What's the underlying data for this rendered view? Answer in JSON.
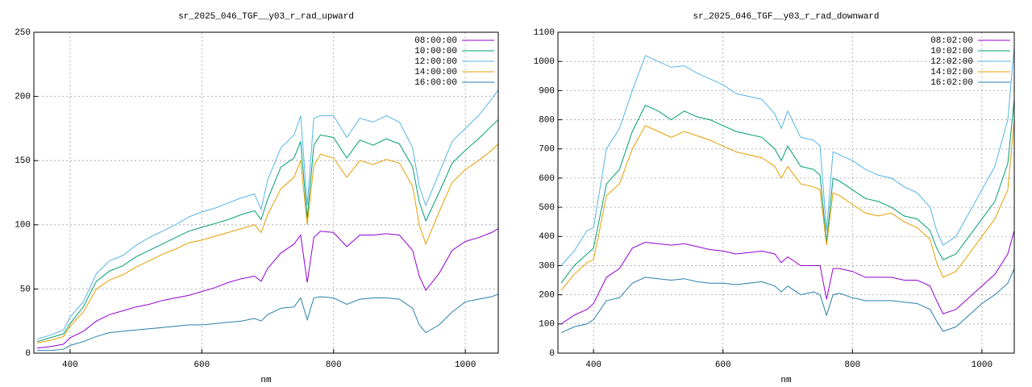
{
  "chart_data": [
    {
      "type": "line",
      "title": "sr_2025_046_TGF__y03_r_rad_upward",
      "xlabel": "nm",
      "x": [
        350,
        370,
        390,
        400,
        420,
        440,
        460,
        480,
        500,
        520,
        540,
        560,
        580,
        600,
        620,
        640,
        660,
        680,
        690,
        700,
        720,
        740,
        750,
        760,
        770,
        780,
        800,
        820,
        840,
        860,
        880,
        900,
        920,
        930,
        940,
        960,
        980,
        1000,
        1020,
        1040,
        1050
      ],
      "xlim": [
        345,
        1050
      ],
      "xticks": [
        400,
        600,
        800,
        1000
      ],
      "ylim": [
        0,
        250
      ],
      "yticks": [
        0,
        50,
        100,
        150,
        200,
        250
      ],
      "grid": true,
      "legend": "top right",
      "series": [
        {
          "name": "08:00:00",
          "color": "#9400d3",
          "values": [
            4,
            5,
            7,
            12,
            17,
            25,
            30,
            33,
            36,
            38,
            41,
            43,
            45,
            48,
            51,
            55,
            58,
            60,
            56,
            66,
            78,
            85,
            92,
            55,
            90,
            95,
            94,
            83,
            92,
            92,
            93,
            92,
            80,
            60,
            49,
            62,
            80,
            87,
            90,
            94,
            97
          ]
        },
        {
          "name": "10:00:00",
          "color": "#009e73",
          "values": [
            9,
            12,
            15,
            23,
            36,
            56,
            64,
            68,
            75,
            80,
            85,
            90,
            95,
            98,
            101,
            104,
            108,
            111,
            104,
            120,
            145,
            152,
            165,
            105,
            162,
            170,
            168,
            152,
            166,
            162,
            167,
            163,
            145,
            118,
            103,
            125,
            148,
            158,
            167,
            177,
            182
          ]
        },
        {
          "name": "12:00:00",
          "color": "#56b4e9",
          "values": [
            11,
            14,
            18,
            28,
            40,
            62,
            72,
            76,
            84,
            90,
            95,
            100,
            106,
            110,
            113,
            117,
            121,
            124,
            112,
            135,
            160,
            170,
            185,
            115,
            183,
            185,
            185,
            168,
            183,
            180,
            185,
            180,
            160,
            130,
            115,
            140,
            165,
            175,
            185,
            198,
            205
          ]
        },
        {
          "name": "14:00:00",
          "color": "#e69f00",
          "values": [
            8,
            10,
            13,
            21,
            32,
            50,
            57,
            61,
            67,
            72,
            77,
            81,
            86,
            88,
            91,
            94,
            97,
            100,
            94,
            108,
            128,
            137,
            150,
            100,
            146,
            155,
            152,
            137,
            150,
            147,
            151,
            148,
            130,
            100,
            85,
            110,
            133,
            143,
            150,
            158,
            163
          ]
        },
        {
          "name": "16:00:00",
          "color": "#2b7fa8",
          "values": [
            2,
            2,
            3,
            6,
            9,
            13,
            16,
            17,
            18,
            19,
            20,
            21,
            22,
            22,
            23,
            24,
            25,
            27,
            25,
            30,
            35,
            36,
            43,
            26,
            43,
            44,
            43,
            38,
            42,
            43,
            43,
            42,
            35,
            22,
            16,
            22,
            32,
            40,
            42,
            44,
            46
          ]
        }
      ]
    },
    {
      "type": "line",
      "title": "sr_2025_046_TGF__y03_r_rad_downward",
      "xlabel": "nm",
      "x": [
        350,
        370,
        390,
        400,
        420,
        440,
        460,
        480,
        500,
        520,
        540,
        560,
        580,
        600,
        620,
        640,
        660,
        680,
        690,
        700,
        720,
        740,
        750,
        760,
        770,
        780,
        800,
        820,
        840,
        860,
        880,
        900,
        920,
        930,
        940,
        960,
        980,
        1000,
        1020,
        1040,
        1050
      ],
      "xlim": [
        345,
        1050
      ],
      "xticks": [
        400,
        600,
        800,
        1000
      ],
      "ylim": [
        0,
        1100
      ],
      "yticks": [
        0,
        100,
        200,
        300,
        400,
        500,
        600,
        700,
        800,
        900,
        1000,
        1100
      ],
      "grid": true,
      "legend": "top right",
      "series": [
        {
          "name": "08:02:00",
          "color": "#9400d3",
          "values": [
            100,
            130,
            150,
            170,
            260,
            290,
            360,
            380,
            375,
            370,
            375,
            365,
            355,
            350,
            340,
            345,
            350,
            340,
            310,
            330,
            300,
            300,
            300,
            185,
            290,
            290,
            280,
            260,
            260,
            260,
            250,
            250,
            230,
            180,
            135,
            150,
            190,
            230,
            270,
            340,
            420
          ]
        },
        {
          "name": "10:02:00",
          "color": "#009e73",
          "values": [
            240,
            300,
            340,
            360,
            580,
            630,
            760,
            850,
            830,
            800,
            830,
            810,
            800,
            780,
            760,
            750,
            740,
            700,
            660,
            710,
            640,
            630,
            610,
            380,
            600,
            590,
            560,
            530,
            520,
            500,
            470,
            460,
            420,
            360,
            320,
            340,
            400,
            460,
            520,
            650,
            870
          ]
        },
        {
          "name": "12:02:00",
          "color": "#56b4e9",
          "values": [
            300,
            350,
            420,
            430,
            700,
            770,
            900,
            1020,
            1000,
            980,
            985,
            960,
            940,
            920,
            890,
            880,
            870,
            820,
            770,
            830,
            740,
            730,
            710,
            420,
            690,
            680,
            660,
            630,
            610,
            600,
            570,
            550,
            500,
            420,
            370,
            400,
            480,
            560,
            640,
            800,
            1050
          ]
        },
        {
          "name": "14:02:00",
          "color": "#e69f00",
          "values": [
            215,
            270,
            310,
            320,
            540,
            580,
            700,
            780,
            760,
            740,
            760,
            745,
            730,
            710,
            690,
            680,
            670,
            640,
            600,
            640,
            580,
            570,
            560,
            370,
            550,
            540,
            510,
            480,
            470,
            480,
            450,
            430,
            390,
            310,
            260,
            280,
            340,
            400,
            460,
            560,
            800
          ]
        },
        {
          "name": "16:02:00",
          "color": "#2b7fa8",
          "values": [
            70,
            90,
            100,
            115,
            180,
            190,
            240,
            260,
            255,
            250,
            255,
            245,
            240,
            240,
            235,
            240,
            245,
            230,
            210,
            230,
            200,
            210,
            200,
            130,
            200,
            205,
            190,
            180,
            180,
            180,
            175,
            170,
            150,
            110,
            75,
            90,
            130,
            170,
            200,
            240,
            290
          ]
        }
      ]
    }
  ]
}
